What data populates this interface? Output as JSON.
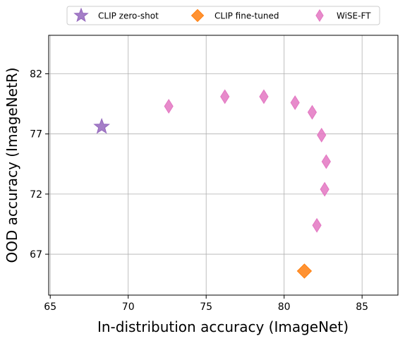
{
  "chart_data": {
    "type": "scatter",
    "xlabel": "In-distribution accuracy (ImageNet)",
    "ylabel": "OOD accuracy (ImageNetR)",
    "xlim": [
      64.9,
      87.3
    ],
    "ylim": [
      63.6,
      85.2
    ],
    "xticks": [
      65,
      70,
      75,
      80,
      85
    ],
    "yticks": [
      67,
      72,
      77,
      82
    ],
    "grid": true,
    "legend_position": "top-center",
    "series": [
      {
        "name": "CLIP zero-shot",
        "marker": "star",
        "color": "#9467bd",
        "points": [
          {
            "x": 68.3,
            "y": 77.6
          }
        ]
      },
      {
        "name": "CLIP fine-tuned",
        "marker": "diamond",
        "color": "#ff7f0e",
        "points": [
          {
            "x": 81.3,
            "y": 65.6
          }
        ]
      },
      {
        "name": "WiSE-FT",
        "marker": "thin-diamond",
        "color": "#e377c2",
        "points": [
          {
            "x": 72.6,
            "y": 79.3
          },
          {
            "x": 76.2,
            "y": 80.1
          },
          {
            "x": 78.7,
            "y": 80.1
          },
          {
            "x": 80.7,
            "y": 79.6
          },
          {
            "x": 81.8,
            "y": 78.8
          },
          {
            "x": 82.4,
            "y": 76.9
          },
          {
            "x": 82.7,
            "y": 74.7
          },
          {
            "x": 82.6,
            "y": 72.4
          },
          {
            "x": 82.1,
            "y": 69.4
          }
        ]
      }
    ]
  }
}
